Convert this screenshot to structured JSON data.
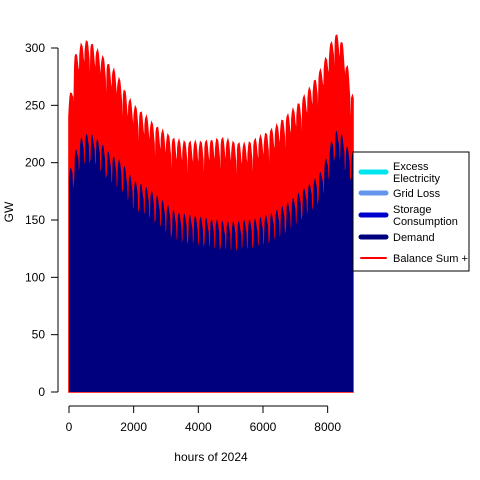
{
  "chart_data": {
    "type": "area",
    "xlabel": "hours of 2024",
    "ylabel": "GW",
    "xlim": [
      0,
      8784
    ],
    "ylim": [
      0,
      300
    ],
    "x_ticks": [
      0,
      2000,
      4000,
      6000,
      8000
    ],
    "y_ticks": [
      0,
      50,
      100,
      150,
      200,
      250,
      300
    ],
    "grid": false,
    "legend_position": "right",
    "series": [
      {
        "name": "Excess Electricity",
        "color": "#00E5EE",
        "kind": "area",
        "values": []
      },
      {
        "name": "Grid Loss",
        "color": "#6495ED",
        "kind": "area",
        "values": []
      },
      {
        "name": "Storage Consumption",
        "color": "#0000CD",
        "kind": "area",
        "values": []
      },
      {
        "name": "Demand",
        "color": "#00007F",
        "kind": "area",
        "x": [
          0,
          200,
          400,
          600,
          800,
          1000,
          1200,
          1400,
          1600,
          1800,
          2000,
          2200,
          2400,
          2600,
          2800,
          3000,
          3200,
          3400,
          3600,
          3800,
          4000,
          4200,
          4400,
          4600,
          4800,
          5000,
          5200,
          5400,
          5600,
          5800,
          6000,
          6200,
          6400,
          6600,
          6800,
          7000,
          7200,
          7400,
          7600,
          7800,
          8000,
          8200,
          8400,
          8600,
          8784
        ],
        "values": [
          185,
          205,
          218,
          220,
          218,
          212,
          205,
          200,
          197,
          188,
          180,
          177,
          174,
          170,
          165,
          160,
          155,
          152,
          151,
          150,
          149,
          148,
          147,
          146,
          145,
          145,
          145,
          146,
          147,
          148,
          150,
          152,
          155,
          159,
          163,
          168,
          173,
          178,
          183,
          190,
          205,
          225,
          225,
          212,
          205
        ]
      },
      {
        "name": "Balance Sum +",
        "color": "#FF0000",
        "kind": "line",
        "x": [
          0,
          200,
          400,
          600,
          800,
          1000,
          1200,
          1400,
          1600,
          1800,
          2000,
          2200,
          2400,
          2600,
          2800,
          3000,
          3200,
          3400,
          3600,
          3800,
          4000,
          4200,
          4400,
          4600,
          4800,
          5000,
          5200,
          5400,
          5600,
          5800,
          6000,
          6200,
          6400,
          6600,
          6800,
          7000,
          7200,
          7400,
          7600,
          7800,
          8000,
          8200,
          8400,
          8600,
          8784
        ],
        "values": [
          240,
          285,
          295,
          298,
          292,
          285,
          278,
          272,
          262,
          250,
          242,
          237,
          232,
          226,
          222,
          218,
          214,
          212,
          211,
          211,
          211,
          212,
          213,
          214,
          215,
          212,
          211,
          210,
          212,
          215,
          218,
          222,
          226,
          232,
          237,
          243,
          250,
          258,
          267,
          277,
          290,
          308,
          305,
          280,
          252
        ]
      }
    ]
  }
}
